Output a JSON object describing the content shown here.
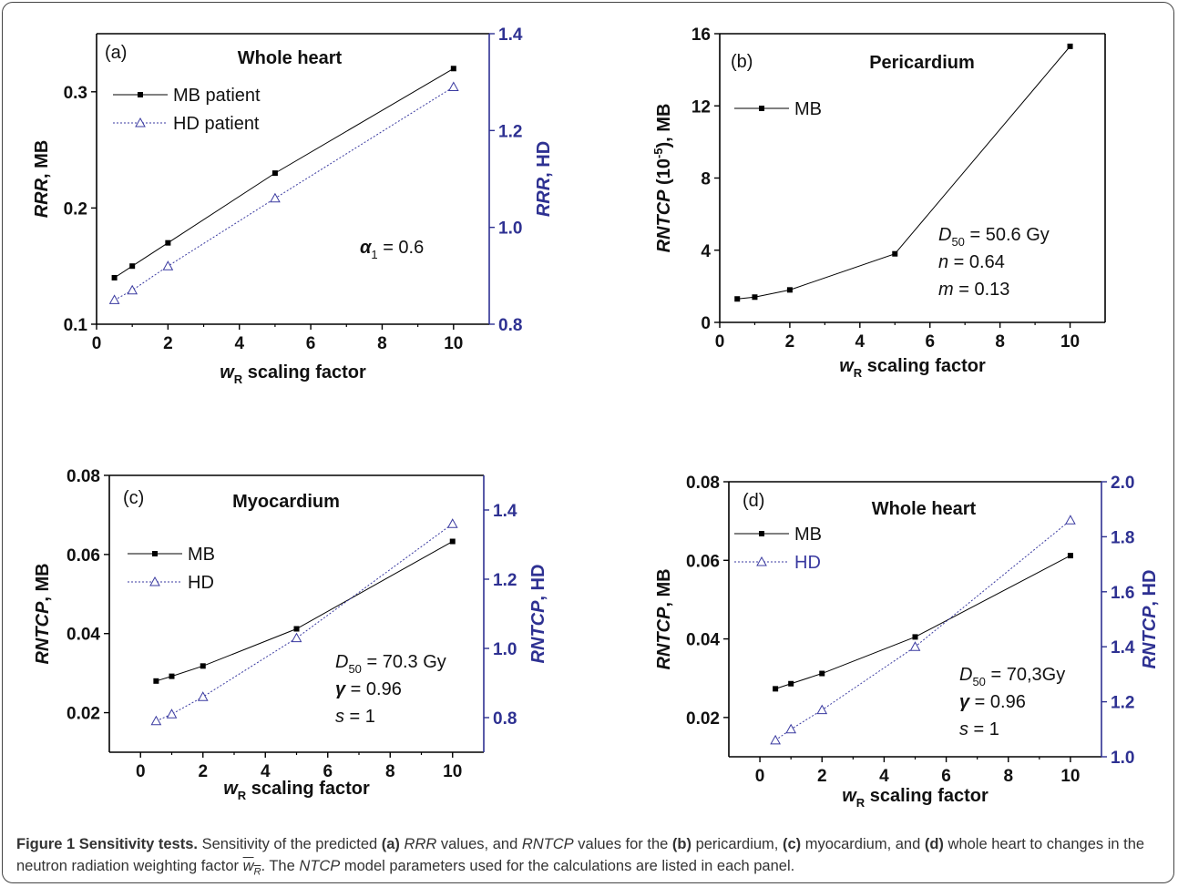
{
  "colors": {
    "mb": "#000000",
    "hd": "#3a3aa0",
    "axis_right": "#2e3192"
  },
  "chart_data": [
    {
      "id": "a",
      "type": "line",
      "panel_label": "(a)",
      "title": "Whole heart",
      "xlabel_var": "w",
      "xlabel_sub": "R",
      "xlabel_rest": " scaling factor",
      "ylabel_left_it": "RRR",
      "ylabel_left_rest": ", MB",
      "ylabel_right_it": "RRR",
      "ylabel_right_rest": ", HD",
      "xlim": [
        0,
        11
      ],
      "ylim_left": [
        0.1,
        0.35
      ],
      "ylim_right": [
        0.8,
        1.4
      ],
      "xticks": [
        0,
        2,
        4,
        6,
        8,
        10
      ],
      "yticks_left": [
        "0.1",
        "0.2",
        "0.3"
      ],
      "yticks_right": [
        "0.8",
        "1.0",
        "1.2",
        "1.4"
      ],
      "series": [
        {
          "name": "MB patient",
          "axis": "left",
          "marker": "square",
          "x": [
            0.5,
            1,
            2,
            5,
            10
          ],
          "y": [
            0.14,
            0.15,
            0.17,
            0.23,
            0.32
          ]
        },
        {
          "name": "HD patient",
          "axis": "right",
          "marker": "triangle",
          "x": [
            0.5,
            1,
            2,
            5,
            10
          ],
          "y": [
            0.85,
            0.87,
            0.92,
            1.06,
            1.29
          ]
        }
      ],
      "params": [
        {
          "sym": "α",
          "sub": "1",
          "rest": " = 0.6"
        }
      ]
    },
    {
      "id": "b",
      "type": "line",
      "panel_label": "(b)",
      "title": "Pericardium",
      "xlabel_var": "w",
      "xlabel_sub": "R",
      "xlabel_rest": " scaling factor",
      "ylabel_left_it": "RNTCP",
      "ylabel_left_rest": " (10",
      "ylabel_left_sup": "-5",
      "ylabel_left_tail": "), MB",
      "xlim": [
        0,
        11
      ],
      "ylim_left": [
        0,
        16
      ],
      "xticks": [
        0,
        2,
        4,
        6,
        8,
        10
      ],
      "yticks_left": [
        "0",
        "4",
        "8",
        "12",
        "16"
      ],
      "series": [
        {
          "name": "MB",
          "axis": "left",
          "marker": "square",
          "x": [
            0.5,
            1,
            2,
            5,
            10
          ],
          "y": [
            1.3,
            1.4,
            1.8,
            3.8,
            15.3
          ]
        }
      ],
      "params": [
        {
          "sym": "D",
          "sub": "50",
          "rest": " = 50.6 Gy"
        },
        {
          "sym": "n",
          "sub": "",
          "rest": " = 0.64"
        },
        {
          "sym": "m",
          "sub": "",
          "rest": " = 0.13"
        }
      ]
    },
    {
      "id": "c",
      "type": "line",
      "panel_label": "(c)",
      "title": "Myocardium",
      "xlabel_var": "w",
      "xlabel_sub": "R",
      "xlabel_rest": " scaling factor",
      "ylabel_left_it": "RNTCP",
      "ylabel_left_rest": ", MB",
      "ylabel_right_it": "RNTCP",
      "ylabel_right_rest": ", HD",
      "xlim": [
        -1,
        11
      ],
      "ylim_left": [
        0.01,
        0.08
      ],
      "ylim_right": [
        0.7,
        1.5
      ],
      "xticks": [
        0,
        2,
        4,
        6,
        8,
        10
      ],
      "yticks_left": [
        "0.02",
        "0.04",
        "0.06",
        "0.08"
      ],
      "yticks_right": [
        "0.8",
        "1.0",
        "1.2",
        "1.4"
      ],
      "series": [
        {
          "name": "MB",
          "axis": "left",
          "marker": "square",
          "x": [
            0.5,
            1,
            2,
            5,
            10
          ],
          "y": [
            0.028,
            0.0292,
            0.0318,
            0.0412,
            0.0633
          ]
        },
        {
          "name": "HD",
          "axis": "right",
          "marker": "triangle",
          "x": [
            0.5,
            1,
            2,
            5,
            10
          ],
          "y": [
            0.79,
            0.81,
            0.86,
            1.03,
            1.36
          ]
        }
      ],
      "params": [
        {
          "sym": "D",
          "sub": "50",
          "rest": " = 70.3 Gy"
        },
        {
          "sym": "γ",
          "sub": "",
          "rest": " = 0.96"
        },
        {
          "sym": "s",
          "sub": "",
          "rest": " = 1"
        }
      ]
    },
    {
      "id": "d",
      "type": "line",
      "panel_label": "(d)",
      "title": "Whole heart",
      "xlabel_var": "w",
      "xlabel_sub": "R",
      "xlabel_rest": " scaling factor",
      "ylabel_left_it": "RNTCP",
      "ylabel_left_rest": ", MB",
      "ylabel_right_it": "RNTCP",
      "ylabel_right_rest": ", HD",
      "xlim": [
        -1,
        11
      ],
      "ylim_left": [
        0.01,
        0.08
      ],
      "ylim_right": [
        1.0,
        2.0
      ],
      "xticks": [
        0,
        2,
        4,
        6,
        8,
        10
      ],
      "yticks_left": [
        "0.02",
        "0.04",
        "0.06",
        "0.08"
      ],
      "yticks_right": [
        "1.0",
        "1.2",
        "1.4",
        "1.6",
        "1.8",
        "2.0"
      ],
      "series": [
        {
          "name": "MB",
          "axis": "left",
          "marker": "square",
          "x": [
            0.5,
            1,
            2,
            5,
            10
          ],
          "y": [
            0.0273,
            0.0286,
            0.0312,
            0.0405,
            0.0612
          ]
        },
        {
          "name": "HD",
          "axis": "right",
          "marker": "triangle",
          "x": [
            0.5,
            1,
            2,
            5,
            10
          ],
          "y": [
            1.06,
            1.1,
            1.17,
            1.4,
            1.86
          ]
        }
      ],
      "params": [
        {
          "sym": "D",
          "sub": "50",
          "rest": " = 70,3Gy"
        },
        {
          "sym": "γ",
          "sub": "",
          "rest": " = 0.96"
        },
        {
          "sym": "s",
          "sub": "",
          "rest": " = 1"
        }
      ]
    }
  ],
  "caption": {
    "figure_label": "Figure 1 Sensitivity tests.",
    "t1": " Sensitivity of the predicted ",
    "a": "(a)",
    "rrr": "RRR",
    "t2": " values, and ",
    "rntcp": "RNTCP",
    "t3": " values for the ",
    "b": "(b)",
    "t4": " pericardium, ",
    "c": "(c)",
    "t5": " myocardium, and ",
    "d": "(d)",
    "t6": " whole heart to changes in the neutron radiation weighting factor ",
    "wr_w": "w",
    "wr_sub": "R",
    "t7": ". The ",
    "ntcp": "NTCP",
    "t8": " model parameters used for the calculations are listed in each panel."
  }
}
